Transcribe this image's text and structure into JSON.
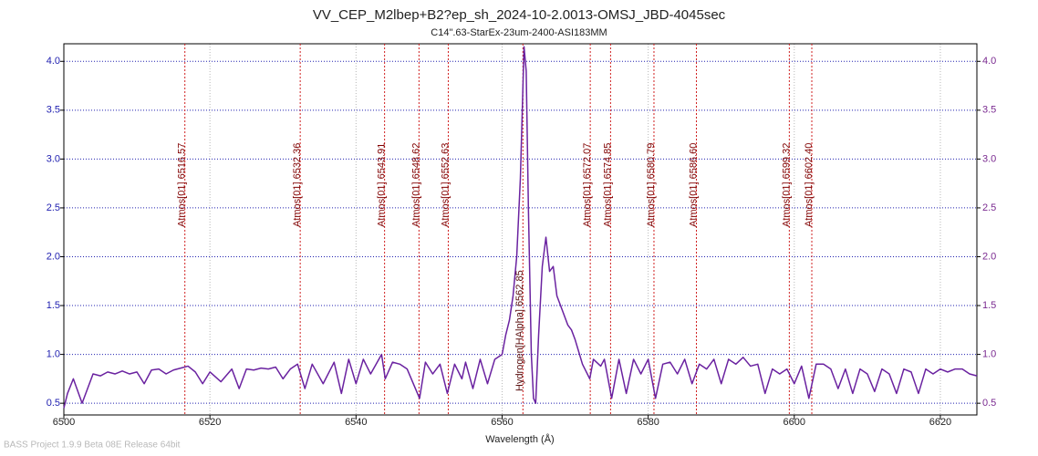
{
  "chart_data": {
    "type": "line",
    "title": "VV_CEP_M2lbep+B2?ep_sh_2024-10-2.0013-OMSJ_JBD-4045sec",
    "subtitle": "C14\".63-StarEx-23um-2400-ASI183MM",
    "x_label": "Wavelength (Å)",
    "footer": "BASS Project 1.9.9 Beta 08E Release 64bit",
    "color": "#6a22a0",
    "grid": true,
    "xlim": [
      6500,
      6625
    ],
    "ylim": [
      0.38,
      4.18
    ],
    "xticks": [
      6500,
      6520,
      6540,
      6560,
      6580,
      6600,
      6620
    ],
    "yticks": [
      0.5,
      {
        "value": 1,
        "label": "1.0"
      },
      1.5,
      {
        "value": 2,
        "label": "2.0"
      },
      2.5,
      {
        "value": 3,
        "label": "3.0"
      },
      3.5,
      {
        "value": 4,
        "label": "4.0"
      }
    ],
    "annotations": [
      {
        "label": "Atmos[01] 6516.57",
        "x": 6516.57
      },
      {
        "label": "Atmos[01] 6532.36",
        "x": 6532.36
      },
      {
        "label": "Atmos[01] 6543.91",
        "x": 6543.91
      },
      {
        "label": "Atmos[01] 6548.62",
        "x": 6548.62
      },
      {
        "label": "Atmos[01] 6552.63",
        "x": 6552.63
      },
      {
        "label": "Atmos[01] 6572.07",
        "x": 6572.07
      },
      {
        "label": "Atmos[01] 6574.85",
        "x": 6574.85
      },
      {
        "label": "Atmos[01] 6580.79",
        "x": 6580.79
      },
      {
        "label": "Atmos[01] 6586.60",
        "x": 6586.6
      },
      {
        "label": "Atmos[01] 6599.32",
        "x": 6599.32
      },
      {
        "label": "Atmos[01] 6602.40",
        "x": 6602.4
      }
    ],
    "emission_lines": [
      {
        "label": "Hydrogen[HAlpha] 6562.85",
        "x": 6562.85
      }
    ],
    "x": [
      6500,
      6500.5,
      6501.3,
      6502.5,
      6504,
      6505,
      6506,
      6507,
      6508,
      6509,
      6510,
      6511,
      6512,
      6513,
      6514,
      6515,
      6516,
      6517,
      6518,
      6519,
      6520,
      6521.5,
      6523,
      6524,
      6525,
      6526,
      6527,
      6528,
      6529,
      6530,
      6531,
      6532,
      6533,
      6534,
      6535.5,
      6537,
      6538,
      6539,
      6540,
      6541,
      6542,
      6543.5,
      6544,
      6545,
      6546,
      6547,
      6548.7,
      6549.5,
      6550.5,
      6551.5,
      6552.5,
      6553.5,
      6554.5,
      6555,
      6556,
      6557,
      6558,
      6559,
      6560,
      6560.5,
      6561,
      6561.5,
      6562,
      6562.5,
      6562.8,
      6563,
      6563.3,
      6563.6,
      6564,
      6564.3,
      6564.6,
      6565,
      6565.5,
      6566,
      6566.5,
      6567,
      6567.5,
      6568,
      6569,
      6569.5,
      6570,
      6571,
      6572,
      6572.5,
      6573.5,
      6574,
      6575,
      6576,
      6577,
      6578,
      6579,
      6580,
      6581,
      6582,
      6583,
      6584,
      6585,
      6586,
      6587,
      6588,
      6589,
      6590,
      6591,
      6592,
      6593,
      6594,
      6595,
      6596,
      6597,
      6598,
      6599,
      6600,
      6601,
      6602,
      6603,
      6604,
      6605,
      6606,
      6607,
      6608,
      6609,
      6610,
      6611,
      6612,
      6613,
      6614,
      6615,
      6616,
      6617,
      6618,
      6619,
      6620,
      6621,
      6622,
      6623,
      6624,
      6625
    ],
    "values": [
      0.45,
      0.6,
      0.75,
      0.5,
      0.8,
      0.78,
      0.82,
      0.8,
      0.83,
      0.8,
      0.82,
      0.7,
      0.84,
      0.85,
      0.8,
      0.84,
      0.86,
      0.88,
      0.82,
      0.7,
      0.82,
      0.72,
      0.85,
      0.65,
      0.85,
      0.84,
      0.86,
      0.85,
      0.87,
      0.75,
      0.85,
      0.9,
      0.65,
      0.9,
      0.7,
      0.92,
      0.6,
      0.95,
      0.7,
      0.95,
      0.8,
      1.0,
      0.75,
      0.92,
      0.9,
      0.85,
      0.55,
      0.92,
      0.8,
      0.9,
      0.6,
      0.9,
      0.75,
      0.92,
      0.65,
      0.95,
      0.7,
      0.95,
      1.0,
      1.2,
      1.35,
      1.6,
      2.0,
      2.8,
      3.6,
      4.15,
      3.9,
      2.5,
      1.0,
      0.55,
      0.5,
      1.2,
      1.9,
      2.2,
      1.85,
      1.9,
      1.6,
      1.5,
      1.3,
      1.25,
      1.15,
      0.9,
      0.75,
      0.95,
      0.88,
      0.95,
      0.55,
      0.95,
      0.6,
      0.95,
      0.8,
      0.95,
      0.55,
      0.9,
      0.92,
      0.8,
      0.95,
      0.7,
      0.9,
      0.85,
      0.95,
      0.7,
      0.95,
      0.9,
      0.97,
      0.88,
      0.9,
      0.6,
      0.85,
      0.8,
      0.85,
      0.7,
      0.88,
      0.55,
      0.9,
      0.9,
      0.85,
      0.65,
      0.85,
      0.6,
      0.85,
      0.8,
      0.62,
      0.85,
      0.8,
      0.6,
      0.85,
      0.82,
      0.6,
      0.85,
      0.8,
      0.85,
      0.82,
      0.85,
      0.85,
      0.8,
      0.78
    ]
  }
}
